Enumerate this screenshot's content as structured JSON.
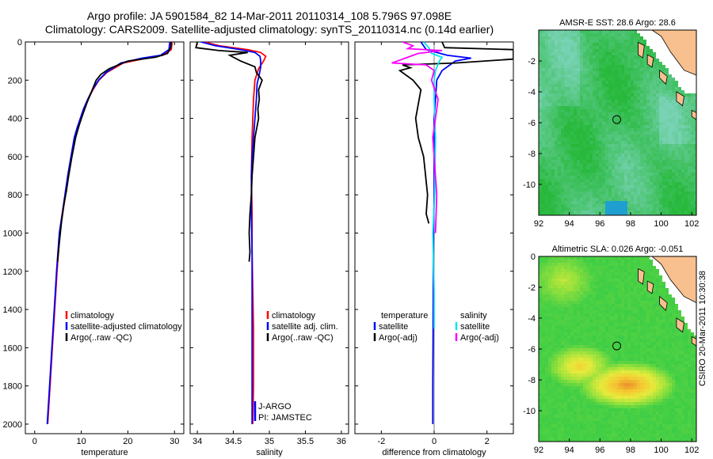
{
  "title": {
    "line1": "Argo profile: JA 5901584_82 14-Mar-2011 20110314_108 5.796S 97.098E",
    "line2": "Climatology: CARS2009. Satellite-adjusted climatology: synTS_20110314.nc (0.14d earlier)"
  },
  "credit": "CSIRO 20-Mar-2011 10:30:38",
  "colors": {
    "climatology": "#ff0000",
    "satellite": "#0000ff",
    "argo": "#000000",
    "cyan": "#00e5ee",
    "magenta": "#ff00ff"
  },
  "chart_data": [
    {
      "type": "line",
      "xlabel": "temperature",
      "xlim": [
        -2,
        32
      ],
      "xticks": [
        0,
        10,
        20,
        30
      ],
      "ylim": [
        2050,
        0
      ],
      "yticks": [
        0,
        200,
        400,
        600,
        800,
        1000,
        1200,
        1400,
        1600,
        1800,
        2000
      ],
      "legend": [
        "climatology",
        "satellite-adjusted climatology",
        "Argo(..raw -QC)"
      ],
      "series": [
        {
          "name": "climatology",
          "color": "red",
          "x": [
            29.5,
            29.3,
            27.5,
            24,
            19,
            15.5,
            13.8,
            12.5,
            11.5,
            10.6,
            9.9,
            9.2,
            8.6,
            7.9,
            7.2,
            6.6,
            6.0,
            5.4,
            4.8,
            4.3,
            3.8,
            3.3,
            2.8
          ],
          "y": [
            0,
            40,
            70,
            85,
            110,
            160,
            200,
            250,
            300,
            350,
            400,
            450,
            500,
            600,
            700,
            800,
            900,
            1000,
            1200,
            1400,
            1600,
            1800,
            2000
          ]
        },
        {
          "name": "satellite-adjusted climatology",
          "color": "blue",
          "x": [
            29.0,
            28.8,
            27.0,
            23,
            18.5,
            15.3,
            13.7,
            12.4,
            11.4,
            10.5,
            9.8,
            9.1,
            8.5,
            7.8,
            7.1,
            6.5,
            5.9,
            5.3,
            4.7,
            4.2,
            3.7,
            3.2,
            2.7
          ],
          "y": [
            0,
            40,
            70,
            85,
            110,
            160,
            200,
            250,
            300,
            350,
            400,
            450,
            500,
            600,
            700,
            800,
            900,
            1000,
            1200,
            1400,
            1600,
            1800,
            2000
          ]
        },
        {
          "name": "Argo(..raw -QC)",
          "color": "black",
          "x": [
            29.3,
            29.2,
            28.5,
            26,
            20,
            16,
            14.2,
            13.2,
            12.2,
            11.2,
            10.3,
            9.5,
            8.8,
            8.0,
            7.3,
            6.8,
            6.2,
            5.8,
            5.3,
            4.9
          ],
          "y": [
            0,
            30,
            60,
            80,
            100,
            140,
            170,
            200,
            260,
            320,
            380,
            440,
            500,
            600,
            700,
            780,
            860,
            930,
            1050,
            1150
          ]
        }
      ]
    },
    {
      "type": "line",
      "xlabel": "salinity",
      "xlim": [
        33.9,
        36.1
      ],
      "xticks": [
        34,
        34.5,
        35,
        35.5,
        36
      ],
      "ylim": [
        2050,
        0
      ],
      "legend": [
        "climatology",
        "satellite adj. clim.",
        "Argo(..raw -QC)"
      ],
      "annotations": [
        "J-ARGO",
        "PI: JAMSTEC"
      ],
      "series": [
        {
          "name": "climatology",
          "color": "red",
          "x": [
            34.1,
            34.3,
            34.7,
            34.88,
            34.95,
            34.92,
            34.85,
            34.8,
            34.78,
            34.76,
            34.75,
            34.76,
            34.76,
            34.77,
            34.78,
            34.78,
            34.77
          ],
          "y": [
            0,
            20,
            40,
            55,
            75,
            100,
            140,
            200,
            300,
            500,
            700,
            900,
            1100,
            1300,
            1500,
            1800,
            2000
          ]
        },
        {
          "name": "satellite adj. clim.",
          "color": "blue",
          "x": [
            34.05,
            34.25,
            34.6,
            34.8,
            34.87,
            34.88,
            34.88,
            34.86,
            34.83,
            34.82,
            34.8,
            34.78,
            34.76,
            34.75,
            34.75,
            34.76,
            34.76,
            34.76,
            34.76
          ],
          "y": [
            0,
            20,
            40,
            55,
            75,
            100,
            130,
            170,
            220,
            300,
            400,
            500,
            600,
            700,
            900,
            1100,
            1300,
            1600,
            2000
          ]
        },
        {
          "name": "Argo(..raw -QC)",
          "color": "black",
          "x": [
            34.0,
            33.98,
            34.3,
            34.7,
            34.45,
            34.6,
            34.8,
            34.82,
            34.9,
            34.85,
            34.86,
            34.84,
            34.85,
            34.8,
            34.78,
            34.76,
            34.75,
            34.73,
            34.72,
            34.73,
            34.72
          ],
          "y": [
            0,
            30,
            45,
            55,
            70,
            100,
            130,
            160,
            200,
            250,
            300,
            350,
            400,
            500,
            600,
            700,
            800,
            900,
            1000,
            1100,
            1150
          ]
        }
      ]
    },
    {
      "type": "line",
      "xlabel": "difference from climatology",
      "xlim": [
        -3,
        3
      ],
      "xticks": [
        -2,
        0,
        2
      ],
      "ylim": [
        2050,
        0
      ],
      "legend": [
        "temperature",
        "satellite",
        "Argo(-adj)",
        "salinity",
        "satellite",
        "Argo(-adj)"
      ],
      "series": [
        {
          "name": "temperature satellite",
          "color": "blue",
          "x": [
            -0.5,
            -0.3,
            0.5,
            1.4,
            0.8,
            0.3,
            0.1,
            0.05,
            0.0,
            0.0,
            0.0,
            -0.02,
            -0.03,
            -0.04,
            -0.05,
            -0.05
          ],
          "y": [
            0,
            40,
            70,
            85,
            100,
            150,
            200,
            300,
            400,
            600,
            800,
            1000,
            1200,
            1500,
            1800,
            2000
          ]
        },
        {
          "name": "temperature Argo(-adj)",
          "color": "black",
          "x": [
            0.3,
            0.4,
            3.0,
            3.0,
            0.8,
            -1.2,
            -0.9,
            -1.3,
            -0.8,
            -0.5,
            -0.7,
            -0.6,
            -0.4,
            -0.25,
            -0.3,
            -0.2
          ],
          "y": [
            0,
            30,
            40,
            90,
            110,
            120,
            135,
            150,
            200,
            250,
            400,
            500,
            600,
            800,
            900,
            950
          ]
        },
        {
          "name": "salinity satellite",
          "color": "cyan",
          "x": [
            -0.4,
            -0.2,
            -0.1,
            0.3,
            0.2,
            0.05,
            0.0,
            0.0,
            0.05,
            0.02,
            -0.05,
            0.0,
            0.0
          ],
          "y": [
            0,
            30,
            60,
            80,
            100,
            150,
            200,
            300,
            500,
            800,
            1000,
            1300,
            1500
          ]
        },
        {
          "name": "salinity Argo(-adj)",
          "color": "magenta",
          "x": [
            -1.2,
            -0.8,
            -1.0,
            0.3,
            -0.6,
            -1.6,
            -0.3,
            0.0,
            -0.1,
            0.15,
            0.05,
            -0.05,
            0.0,
            0.1,
            0.05
          ],
          "y": [
            0,
            20,
            35,
            45,
            60,
            110,
            120,
            150,
            200,
            300,
            400,
            500,
            600,
            800,
            1000
          ]
        }
      ]
    },
    {
      "type": "heatmap",
      "title": "AMSR-E SST: 28.6 Argo: 28.6",
      "xlim": [
        92,
        102.3
      ],
      "xticks": [
        92,
        94,
        96,
        98,
        100,
        102
      ],
      "ylim": [
        -12,
        0
      ],
      "yticks": [
        -2,
        -4,
        -6,
        -8,
        -10
      ],
      "marker": {
        "lon": 97.1,
        "lat": -5.8
      }
    },
    {
      "type": "heatmap",
      "title": "Altimetric SLA: 0.026 Argo: -0.051",
      "xlim": [
        92,
        102.3
      ],
      "xticks": [
        92,
        94,
        96,
        98,
        100,
        102
      ],
      "ylim": [
        -12,
        0
      ],
      "yticks": [
        0,
        -2,
        -4,
        -6,
        -8,
        -10
      ],
      "marker": {
        "lon": 97.1,
        "lat": -5.8
      }
    }
  ]
}
